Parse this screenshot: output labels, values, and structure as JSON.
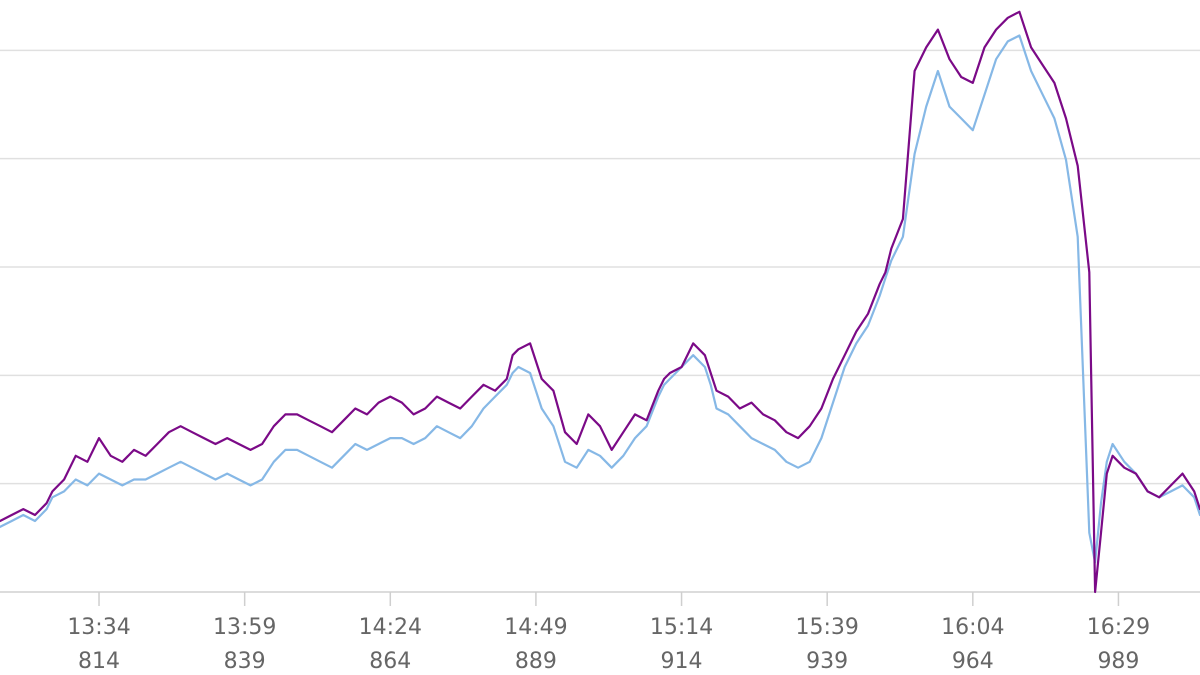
{
  "chart_data": {
    "type": "line",
    "title": "",
    "xlabel": "",
    "ylabel": "",
    "grid": true,
    "x_ticks": [
      {
        "x": 814,
        "time": "13:34",
        "index": "814"
      },
      {
        "x": 839,
        "time": "13:59",
        "index": "839"
      },
      {
        "x": 864,
        "time": "14:24",
        "index": "864"
      },
      {
        "x": 889,
        "time": "14:49",
        "index": "889"
      },
      {
        "x": 914,
        "time": "15:14",
        "index": "914"
      },
      {
        "x": 939,
        "time": "15:39",
        "index": "939"
      },
      {
        "x": 964,
        "time": "16:04",
        "index": "964"
      },
      {
        "x": 989,
        "time": "16:29",
        "index": "989"
      }
    ],
    "xlim": [
      797,
      1003
    ],
    "ylim": [
      0,
      100
    ],
    "gridlines_y": [
      0,
      18.3,
      36.6,
      54.9,
      73.2,
      91.5
    ],
    "series": [
      {
        "color": "#7b0a87",
        "points": [
          [
            797,
            12
          ],
          [
            799,
            13
          ],
          [
            801,
            14
          ],
          [
            803,
            13
          ],
          [
            805,
            15
          ],
          [
            806,
            17
          ],
          [
            808,
            19
          ],
          [
            810,
            23
          ],
          [
            812,
            22
          ],
          [
            814,
            26
          ],
          [
            816,
            23
          ],
          [
            818,
            22
          ],
          [
            820,
            24
          ],
          [
            822,
            23
          ],
          [
            824,
            25
          ],
          [
            826,
            27
          ],
          [
            828,
            28
          ],
          [
            830,
            27
          ],
          [
            832,
            26
          ],
          [
            834,
            25
          ],
          [
            836,
            26
          ],
          [
            838,
            25
          ],
          [
            840,
            24
          ],
          [
            842,
            25
          ],
          [
            844,
            28
          ],
          [
            846,
            30
          ],
          [
            848,
            30
          ],
          [
            850,
            29
          ],
          [
            852,
            28
          ],
          [
            854,
            27
          ],
          [
            856,
            29
          ],
          [
            858,
            31
          ],
          [
            860,
            30
          ],
          [
            862,
            32
          ],
          [
            864,
            33
          ],
          [
            866,
            32
          ],
          [
            868,
            30
          ],
          [
            870,
            31
          ],
          [
            872,
            33
          ],
          [
            874,
            32
          ],
          [
            876,
            31
          ],
          [
            878,
            33
          ],
          [
            880,
            35
          ],
          [
            882,
            34
          ],
          [
            884,
            36
          ],
          [
            885,
            40
          ],
          [
            886,
            41
          ],
          [
            888,
            42
          ],
          [
            890,
            36
          ],
          [
            892,
            34
          ],
          [
            894,
            27
          ],
          [
            896,
            25
          ],
          [
            898,
            30
          ],
          [
            900,
            28
          ],
          [
            902,
            24
          ],
          [
            904,
            27
          ],
          [
            906,
            30
          ],
          [
            908,
            29
          ],
          [
            910,
            34
          ],
          [
            911,
            36
          ],
          [
            912,
            37
          ],
          [
            914,
            38
          ],
          [
            916,
            42
          ],
          [
            918,
            40
          ],
          [
            919,
            37
          ],
          [
            920,
            34
          ],
          [
            922,
            33
          ],
          [
            924,
            31
          ],
          [
            926,
            32
          ],
          [
            928,
            30
          ],
          [
            930,
            29
          ],
          [
            932,
            27
          ],
          [
            934,
            26
          ],
          [
            936,
            28
          ],
          [
            938,
            31
          ],
          [
            940,
            36
          ],
          [
            942,
            40
          ],
          [
            944,
            44
          ],
          [
            946,
            47
          ],
          [
            948,
            52
          ],
          [
            949,
            54
          ],
          [
            950,
            58
          ],
          [
            952,
            63
          ],
          [
            954,
            88
          ],
          [
            956,
            92
          ],
          [
            958,
            95
          ],
          [
            960,
            90
          ],
          [
            962,
            87
          ],
          [
            964,
            86
          ],
          [
            966,
            92
          ],
          [
            968,
            95
          ],
          [
            970,
            97
          ],
          [
            972,
            98
          ],
          [
            974,
            92
          ],
          [
            976,
            89
          ],
          [
            978,
            86
          ],
          [
            980,
            80
          ],
          [
            982,
            72
          ],
          [
            984,
            54
          ],
          [
            985,
            0
          ],
          [
            986,
            10
          ],
          [
            987,
            20
          ],
          [
            988,
            23
          ],
          [
            990,
            21
          ],
          [
            992,
            20
          ],
          [
            994,
            17
          ],
          [
            996,
            16
          ],
          [
            998,
            18
          ],
          [
            1000,
            20
          ],
          [
            1002,
            17
          ],
          [
            1003,
            14
          ]
        ]
      },
      {
        "color": "#86b8e6",
        "points": [
          [
            797,
            11
          ],
          [
            799,
            12
          ],
          [
            801,
            13
          ],
          [
            803,
            12
          ],
          [
            805,
            14
          ],
          [
            806,
            16
          ],
          [
            808,
            17
          ],
          [
            810,
            19
          ],
          [
            812,
            18
          ],
          [
            814,
            20
          ],
          [
            816,
            19
          ],
          [
            818,
            18
          ],
          [
            820,
            19
          ],
          [
            822,
            19
          ],
          [
            824,
            20
          ],
          [
            826,
            21
          ],
          [
            828,
            22
          ],
          [
            830,
            21
          ],
          [
            832,
            20
          ],
          [
            834,
            19
          ],
          [
            836,
            20
          ],
          [
            838,
            19
          ],
          [
            840,
            18
          ],
          [
            842,
            19
          ],
          [
            844,
            22
          ],
          [
            846,
            24
          ],
          [
            848,
            24
          ],
          [
            850,
            23
          ],
          [
            852,
            22
          ],
          [
            854,
            21
          ],
          [
            856,
            23
          ],
          [
            858,
            25
          ],
          [
            860,
            24
          ],
          [
            862,
            25
          ],
          [
            864,
            26
          ],
          [
            866,
            26
          ],
          [
            868,
            25
          ],
          [
            870,
            26
          ],
          [
            872,
            28
          ],
          [
            874,
            27
          ],
          [
            876,
            26
          ],
          [
            878,
            28
          ],
          [
            880,
            31
          ],
          [
            882,
            33
          ],
          [
            884,
            35
          ],
          [
            885,
            37
          ],
          [
            886,
            38
          ],
          [
            888,
            37
          ],
          [
            890,
            31
          ],
          [
            892,
            28
          ],
          [
            894,
            22
          ],
          [
            896,
            21
          ],
          [
            898,
            24
          ],
          [
            900,
            23
          ],
          [
            902,
            21
          ],
          [
            904,
            23
          ],
          [
            906,
            26
          ],
          [
            908,
            28
          ],
          [
            910,
            33
          ],
          [
            911,
            35
          ],
          [
            912,
            36
          ],
          [
            914,
            38
          ],
          [
            916,
            40
          ],
          [
            918,
            38
          ],
          [
            919,
            35
          ],
          [
            920,
            31
          ],
          [
            922,
            30
          ],
          [
            924,
            28
          ],
          [
            926,
            26
          ],
          [
            928,
            25
          ],
          [
            930,
            24
          ],
          [
            932,
            22
          ],
          [
            934,
            21
          ],
          [
            936,
            22
          ],
          [
            938,
            26
          ],
          [
            940,
            32
          ],
          [
            942,
            38
          ],
          [
            944,
            42
          ],
          [
            946,
            45
          ],
          [
            948,
            50
          ],
          [
            949,
            53
          ],
          [
            950,
            56
          ],
          [
            952,
            60
          ],
          [
            954,
            74
          ],
          [
            956,
            82
          ],
          [
            958,
            88
          ],
          [
            960,
            82
          ],
          [
            962,
            80
          ],
          [
            964,
            78
          ],
          [
            966,
            84
          ],
          [
            968,
            90
          ],
          [
            970,
            93
          ],
          [
            972,
            94
          ],
          [
            974,
            88
          ],
          [
            976,
            84
          ],
          [
            978,
            80
          ],
          [
            980,
            73
          ],
          [
            982,
            60
          ],
          [
            984,
            10
          ],
          [
            985,
            5
          ],
          [
            986,
            15
          ],
          [
            987,
            22
          ],
          [
            988,
            25
          ],
          [
            990,
            22
          ],
          [
            992,
            20
          ],
          [
            994,
            17
          ],
          [
            996,
            16
          ],
          [
            998,
            17
          ],
          [
            1000,
            18
          ],
          [
            1002,
            16
          ],
          [
            1003,
            13
          ]
        ]
      }
    ]
  }
}
